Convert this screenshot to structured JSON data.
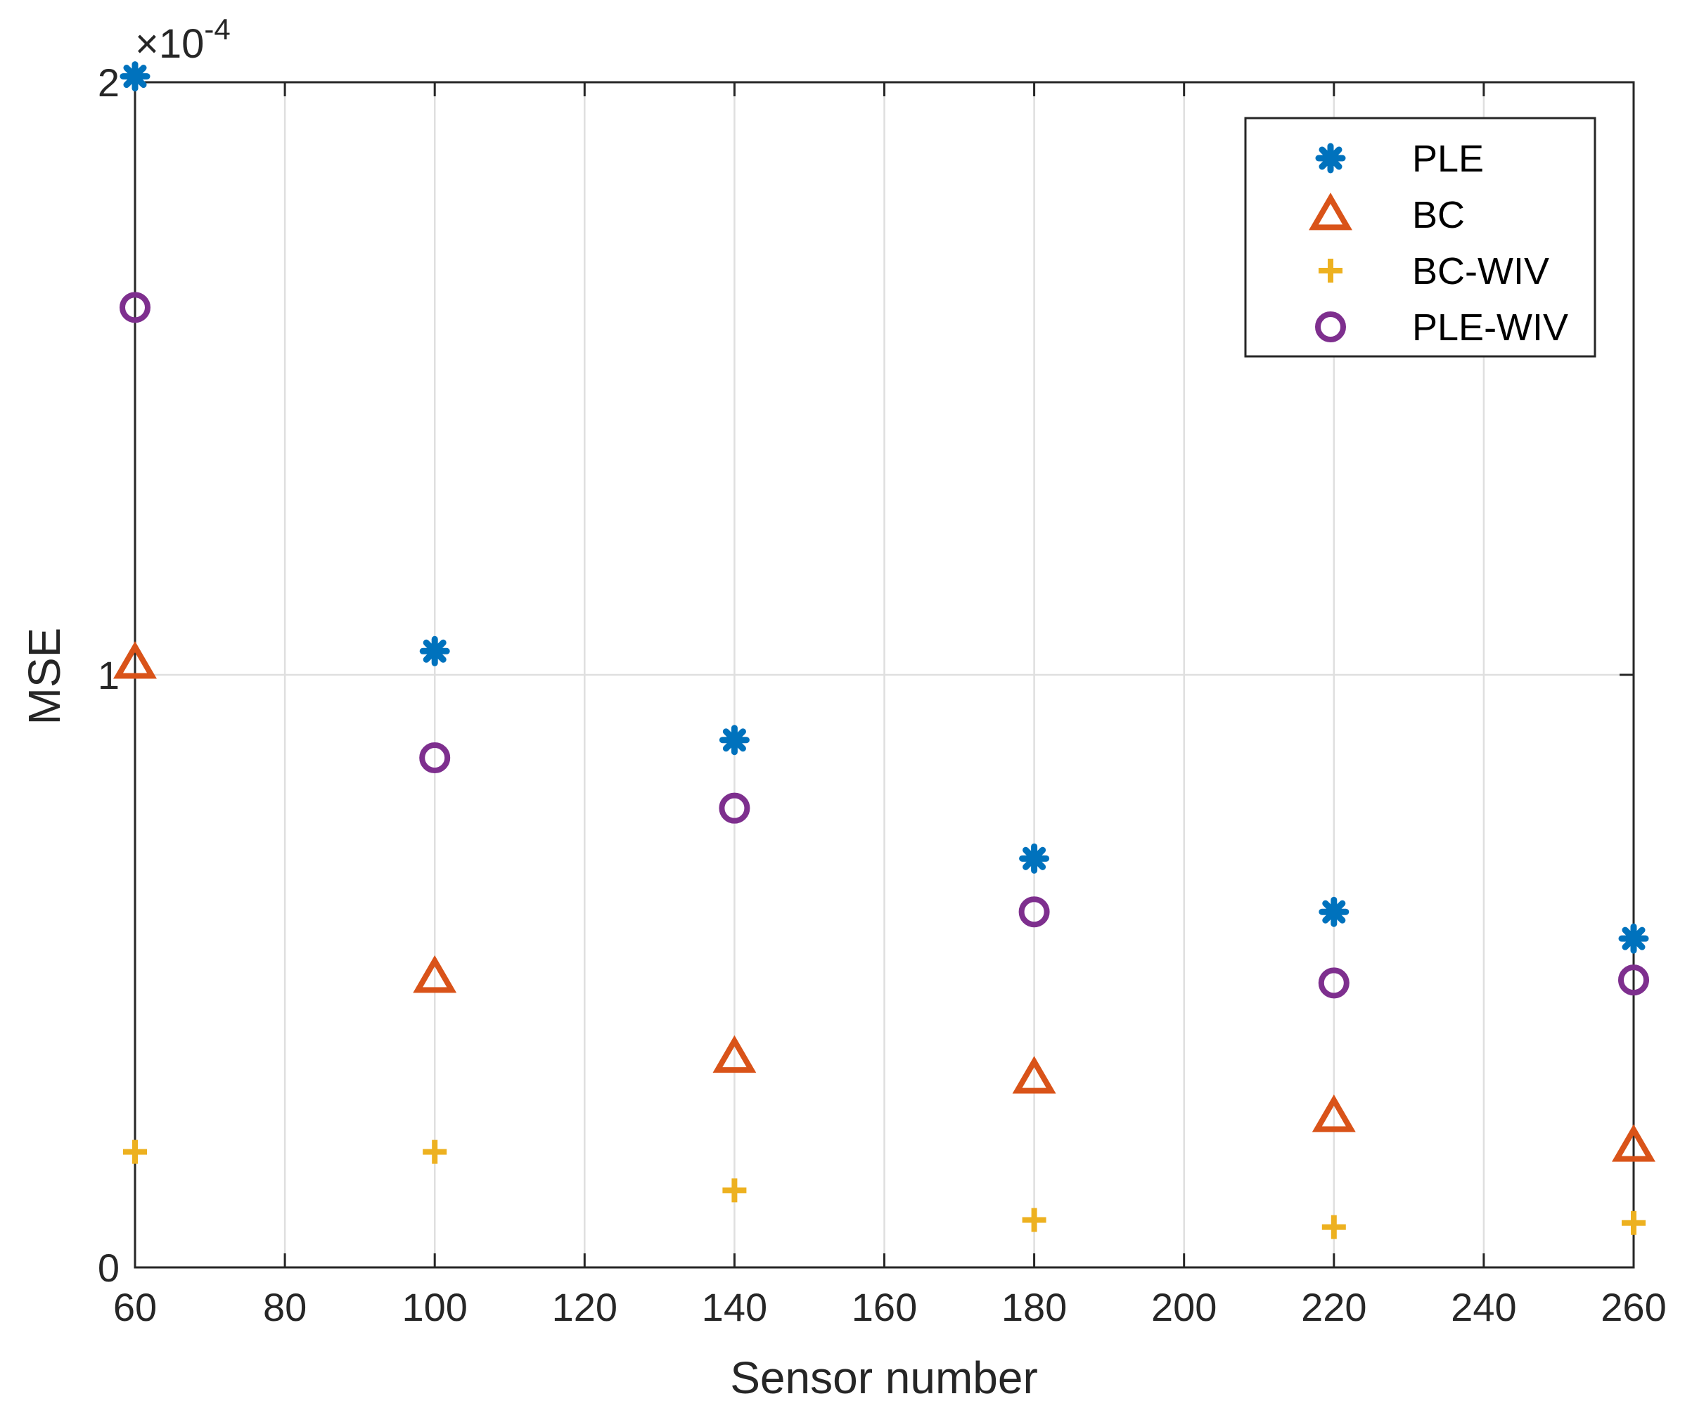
{
  "chart_data": {
    "type": "scatter",
    "title": "",
    "xlabel": "Sensor number",
    "ylabel": "MSE",
    "exponent_prefix": "×10",
    "exponent_power": "-4",
    "xlim": [
      60,
      260
    ],
    "ylim": [
      0,
      2
    ],
    "xticks": [
      60,
      80,
      100,
      120,
      140,
      160,
      180,
      200,
      220,
      240,
      260
    ],
    "xtick_labels": [
      "60",
      "80",
      "100",
      "120",
      "140",
      "160",
      "180",
      "200",
      "220",
      "240",
      "260"
    ],
    "yticks": [
      0,
      1,
      2
    ],
    "ytick_labels": [
      "0",
      "1",
      "2"
    ],
    "grid": true,
    "legend_position": "top-right",
    "x": [
      60,
      100,
      140,
      180,
      220,
      260
    ],
    "series": [
      {
        "name": "PLE",
        "marker": "asterisk",
        "color": "#0072BD",
        "values": [
          2.01,
          1.04,
          0.89,
          0.69,
          0.6,
          0.555
        ]
      },
      {
        "name": "BC",
        "marker": "triangle",
        "color": "#D95319",
        "values": [
          1.02,
          0.49,
          0.355,
          0.32,
          0.255,
          0.205
        ]
      },
      {
        "name": "BC-WIV",
        "marker": "plus",
        "color": "#EDB120",
        "values": [
          0.195,
          0.195,
          0.13,
          0.08,
          0.068,
          0.075
        ]
      },
      {
        "name": "PLE-WIV",
        "marker": "circle",
        "color": "#7E2F8E",
        "values": [
          1.62,
          0.86,
          0.775,
          0.6,
          0.48,
          0.485
        ]
      }
    ]
  }
}
